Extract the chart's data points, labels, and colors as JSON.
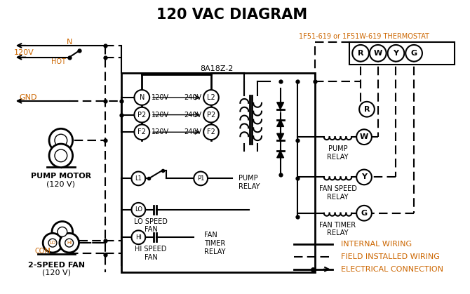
{
  "title": "120 VAC DIAGRAM",
  "title_color": "#000000",
  "title_fontsize": 14,
  "background_color": "#ffffff",
  "orange_color": "#cc6600",
  "black_color": "#000000",
  "thermostat_label": "1F51-619 or 1F51W-619 THERMOSTAT",
  "control_box_label": "8A18Z-2",
  "terminals": [
    "R",
    "W",
    "Y",
    "G"
  ],
  "input_terms": [
    {
      "left": "N",
      "lv": "120V",
      "rv": "240V",
      "right": "L2"
    },
    {
      "left": "P2",
      "lv": "120V",
      "rv": "240V",
      "right": "P2"
    },
    {
      "left": "F2",
      "lv": "120V",
      "rv": "240V",
      "right": "F2"
    }
  ]
}
